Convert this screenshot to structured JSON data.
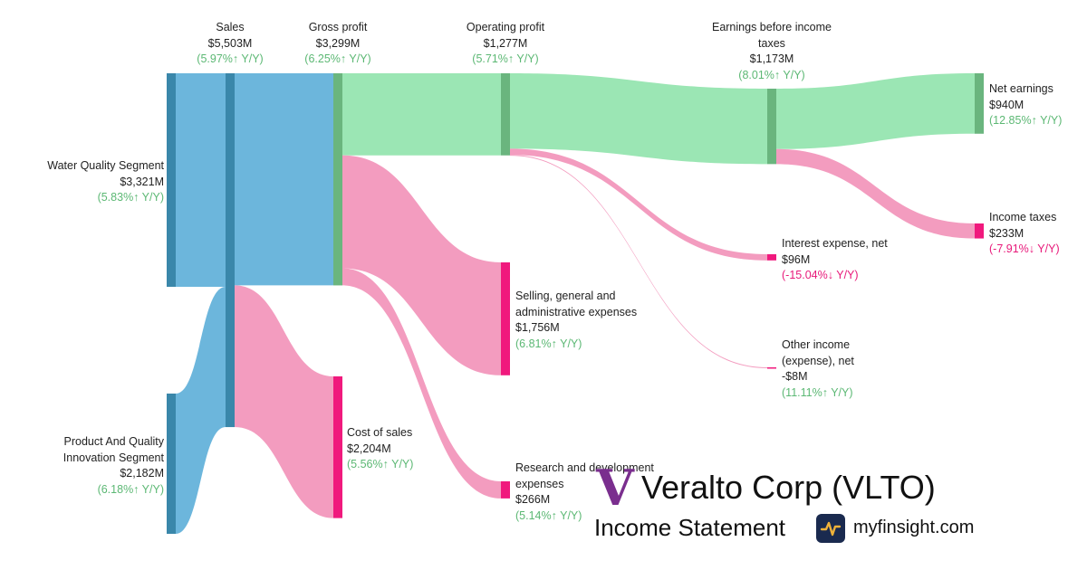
{
  "chart_data": {
    "type": "sankey",
    "nodes": [
      {
        "id": "water",
        "name": "Water Quality Segment",
        "value": "$3,321M",
        "change": "5.83%↑ Y/Y",
        "trend": "up"
      },
      {
        "id": "pqi",
        "name": "Product And Quality Innovation Segment",
        "value": "$2,182M",
        "change": "6.18%↑ Y/Y",
        "trend": "up"
      },
      {
        "id": "sales",
        "name": "Sales",
        "value": "$5,503M",
        "change": "5.97%↑ Y/Y",
        "trend": "up"
      },
      {
        "id": "gross",
        "name": "Gross profit",
        "value": "$3,299M",
        "change": "6.25%↑ Y/Y",
        "trend": "up"
      },
      {
        "id": "cos",
        "name": "Cost of sales",
        "value": "$2,204M",
        "change": "5.56%↑ Y/Y",
        "trend": "up"
      },
      {
        "id": "op",
        "name": "Operating profit",
        "value": "$1,277M",
        "change": "5.71%↑ Y/Y",
        "trend": "up"
      },
      {
        "id": "sga",
        "name": "Selling, general and administrative expenses",
        "value": "$1,756M",
        "change": "6.81%↑ Y/Y",
        "trend": "up"
      },
      {
        "id": "rnd",
        "name": "Research and development expenses",
        "value": "$266M",
        "change": "5.14%↑ Y/Y",
        "trend": "up"
      },
      {
        "id": "ebt",
        "name": "Earnings before income taxes",
        "value": "$1,173M",
        "change": "8.01%↑ Y/Y",
        "trend": "up"
      },
      {
        "id": "interest",
        "name": "Interest expense, net",
        "value": "$96M",
        "change": "-15.04%↓ Y/Y",
        "trend": "down"
      },
      {
        "id": "other",
        "name": "Other income (expense), net",
        "value": "-$8M",
        "change": "11.11%↑ Y/Y",
        "trend": "up"
      },
      {
        "id": "net",
        "name": "Net earnings",
        "value": "$940M",
        "change": "12.85%↑ Y/Y",
        "trend": "up"
      },
      {
        "id": "tax",
        "name": "Income taxes",
        "value": "$233M",
        "change": "-7.91%↓ Y/Y",
        "trend": "down"
      }
    ],
    "links": [
      {
        "source": "water",
        "target": "sales",
        "value": 3321
      },
      {
        "source": "pqi",
        "target": "sales",
        "value": 2182
      },
      {
        "source": "sales",
        "target": "gross",
        "value": 3299
      },
      {
        "source": "sales",
        "target": "cos",
        "value": 2204
      },
      {
        "source": "gross",
        "target": "op",
        "value": 1277
      },
      {
        "source": "gross",
        "target": "sga",
        "value": 1756
      },
      {
        "source": "gross",
        "target": "rnd",
        "value": 266
      },
      {
        "source": "op",
        "target": "ebt",
        "value": 1173
      },
      {
        "source": "op",
        "target": "interest",
        "value": 96
      },
      {
        "source": "op",
        "target": "other",
        "value": 8
      },
      {
        "source": "ebt",
        "target": "net",
        "value": 940
      },
      {
        "source": "ebt",
        "target": "tax",
        "value": 233
      }
    ],
    "colors": {
      "revenue_node": "#3a87aa",
      "revenue_flow": "#6cb6dc",
      "profit_node": "#6ab57e",
      "profit_flow": "#9be6b4",
      "expense_node": "#f0197d",
      "expense_flow": "#f39cbf",
      "up_text": "#5cb874",
      "down_text": "#e8197a"
    }
  },
  "branding": {
    "logo_letter": "V",
    "company": "Veralto Corp (VLTO)",
    "statement": "Income Statement",
    "site": "myfinsight.com",
    "logo_color": "#7a2e8e"
  }
}
